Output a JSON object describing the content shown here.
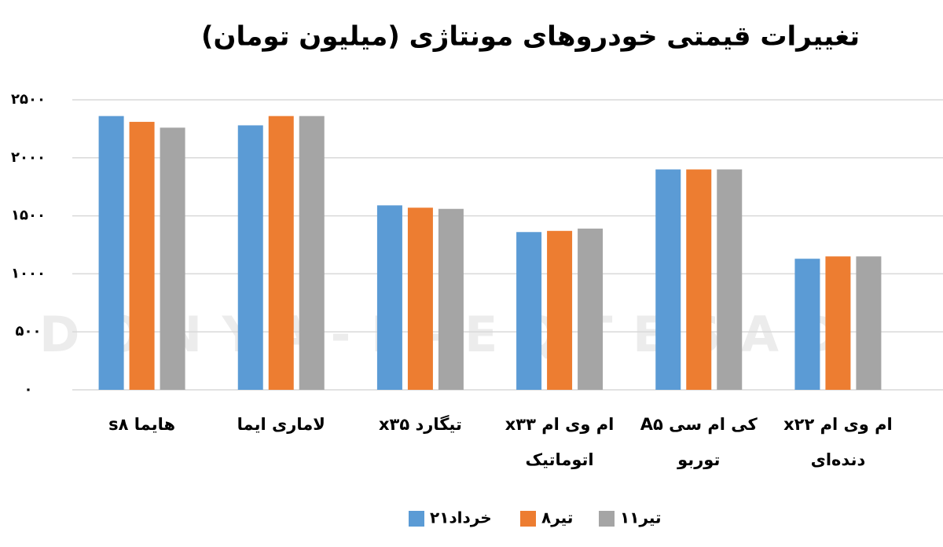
{
  "chart_data": {
    "type": "bar",
    "title": "تغییرات قیمتی خودروهای مونتاژی (میلیون تومان)",
    "watermark": "DONYA-E-EQTESAD",
    "categories": [
      "هایما s۸",
      "لاماری ایما",
      "تیگارد x۳۵",
      "ام وی ام  x۳۳\nاتوماتیک",
      "کی ام سی  A۵\nتوربو",
      "ام وی ام  x۲۲\nدنده‌ای"
    ],
    "series": [
      {
        "name": "۲۱خرداد",
        "color": "#5b9bd5",
        "values": [
          2360,
          2280,
          1590,
          1360,
          1900,
          1130
        ]
      },
      {
        "name": "۸تیر",
        "color": "#ed7d31",
        "values": [
          2310,
          2360,
          1570,
          1370,
          1900,
          1150
        ]
      },
      {
        "name": "۱۱تیر",
        "color": "#a5a5a5",
        "values": [
          2260,
          2360,
          1560,
          1390,
          1900,
          1150
        ]
      }
    ],
    "ylim": [
      0,
      2500
    ],
    "yticks": [
      {
        "value": 0,
        "label": "۰"
      },
      {
        "value": 500,
        "label": "۵۰۰"
      },
      {
        "value": 1000,
        "label": "۱۰۰۰"
      },
      {
        "value": 1500,
        "label": "۱۵۰۰"
      },
      {
        "value": 2000,
        "label": "۲۰۰۰"
      },
      {
        "value": 2500,
        "label": "۲۵۰۰"
      }
    ],
    "grid": true
  }
}
